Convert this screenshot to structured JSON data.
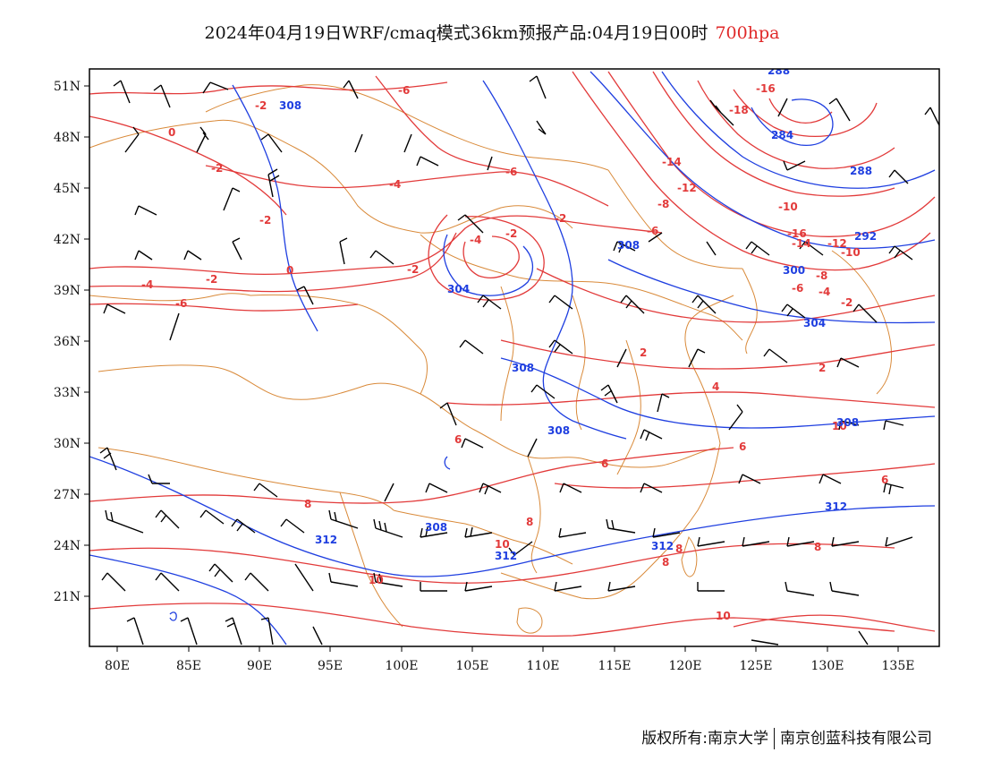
{
  "title": {
    "text": "2024年04月19日WRF/cmaq模式36km预报产品:04月19日00时",
    "level": "700hpa"
  },
  "axes": {
    "x_ticks": [
      "80E",
      "85E",
      "90E",
      "95E",
      "100E",
      "105E",
      "110E",
      "115E",
      "120E",
      "125E",
      "130E",
      "135E"
    ],
    "y_ticks": [
      "51N",
      "48N",
      "45N",
      "42N",
      "39N",
      "36N",
      "33N",
      "30N",
      "27N",
      "24N",
      "21N"
    ]
  },
  "colors": {
    "temperature": "#e23a3a",
    "height": "#1f3fe0",
    "boundary": "#d98a3a",
    "wind": "#000000"
  },
  "contour_labels": {
    "temperature": [
      "-6",
      "-2",
      "0",
      "-2",
      "-4",
      "-2",
      "-2",
      "-6",
      "-4",
      "-2",
      "-2",
      "-14",
      "-16",
      "-18",
      "-12",
      "-8",
      "-6",
      "-10",
      "-16",
      "-14",
      "-12",
      "-10",
      "-8",
      "-6",
      "-4",
      "-2",
      "0",
      "-2",
      "-4",
      "-6",
      "2",
      "2",
      "4",
      "6",
      "6",
      "6",
      "8",
      "6",
      "8",
      "10",
      "10",
      "10",
      "8",
      "8",
      "8",
      "10"
    ],
    "height": [
      "308",
      "308",
      "304",
      "308",
      "308",
      "288",
      "284",
      "288",
      "292",
      "300",
      "304",
      "308",
      "312",
      "312",
      "312",
      "312",
      "308"
    ]
  },
  "footer": {
    "left": "版权所有:南京大学",
    "right": "南京创蓝科技有限公司"
  }
}
